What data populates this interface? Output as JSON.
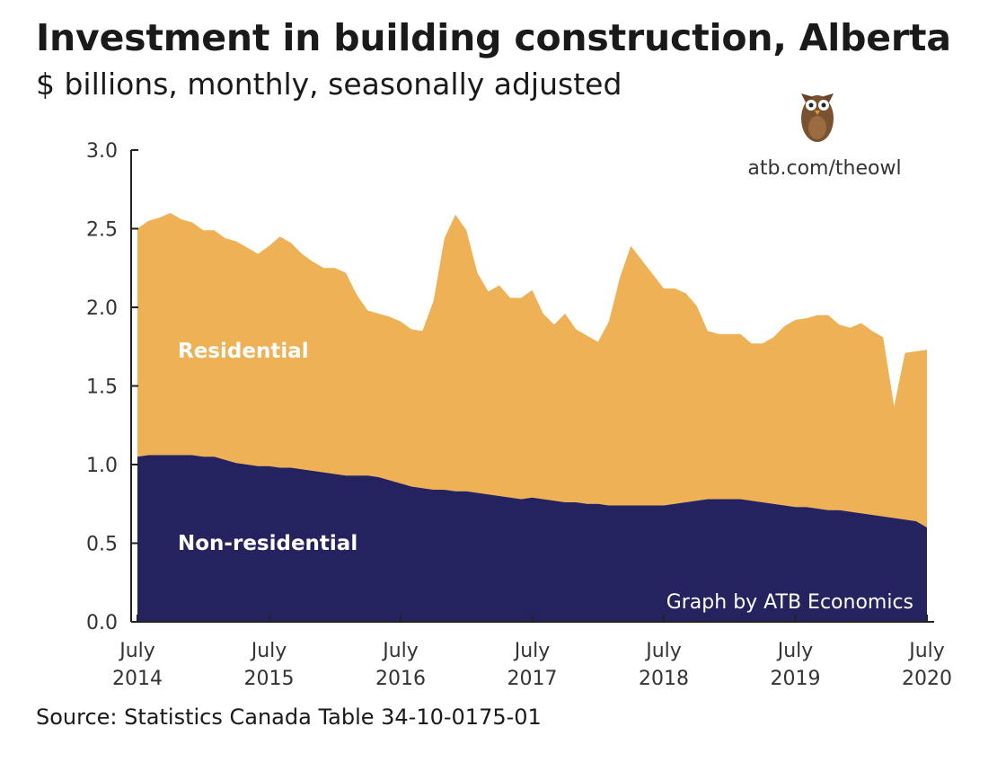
{
  "title": "Investment in building construction, Alberta",
  "subtitle": "$ billions, monthly, seasonally adjusted",
  "source": "Source: Statistics Canada Table 34-10-0175-01",
  "owl_link": "atb.com/theowl",
  "credit": "Graph by ATB Economics",
  "colors": {
    "residential": "#EEB156",
    "non_residential": "#25235F",
    "owl": "#7A5230"
  },
  "chart_data": {
    "type": "area",
    "stacked": true,
    "ylim": [
      0,
      3.0
    ],
    "yticks": [
      "0.0",
      "0.5",
      "1.0",
      "1.5",
      "2.0",
      "2.5",
      "3.0"
    ],
    "xticks": [
      {
        "month": "July",
        "year": "2014"
      },
      {
        "month": "July",
        "year": "2015"
      },
      {
        "month": "July",
        "year": "2016"
      },
      {
        "month": "July",
        "year": "2017"
      },
      {
        "month": "July",
        "year": "2018"
      },
      {
        "month": "July",
        "year": "2019"
      },
      {
        "month": "July",
        "year": "2020"
      }
    ],
    "x_start": "2014-07",
    "x_end": "2020-07",
    "series": [
      {
        "name": "Non-residential",
        "values": [
          1.05,
          1.06,
          1.06,
          1.06,
          1.06,
          1.06,
          1.05,
          1.05,
          1.03,
          1.01,
          1.0,
          0.99,
          0.99,
          0.98,
          0.98,
          0.97,
          0.96,
          0.95,
          0.94,
          0.93,
          0.93,
          0.93,
          0.92,
          0.9,
          0.88,
          0.86,
          0.85,
          0.84,
          0.84,
          0.83,
          0.83,
          0.82,
          0.81,
          0.8,
          0.79,
          0.78,
          0.79,
          0.78,
          0.77,
          0.76,
          0.76,
          0.75,
          0.75,
          0.74,
          0.74,
          0.74,
          0.74,
          0.74,
          0.74,
          0.75,
          0.76,
          0.77,
          0.78,
          0.78,
          0.78,
          0.78,
          0.77,
          0.76,
          0.75,
          0.74,
          0.73,
          0.73,
          0.72,
          0.71,
          0.71,
          0.7,
          0.69,
          0.68,
          0.67,
          0.66,
          0.65,
          0.64,
          0.6
        ]
      },
      {
        "name": "Residential",
        "values": [
          1.45,
          1.49,
          1.51,
          1.54,
          1.5,
          1.48,
          1.44,
          1.44,
          1.41,
          1.41,
          1.38,
          1.35,
          1.4,
          1.47,
          1.43,
          1.37,
          1.33,
          1.3,
          1.31,
          1.29,
          1.15,
          1.05,
          1.04,
          1.04,
          1.03,
          1.0,
          1.0,
          1.2,
          1.6,
          1.76,
          1.66,
          1.4,
          1.29,
          1.34,
          1.27,
          1.28,
          1.32,
          1.18,
          1.12,
          1.2,
          1.1,
          1.07,
          1.03,
          1.17,
          1.45,
          1.65,
          1.56,
          1.47,
          1.38,
          1.37,
          1.33,
          1.24,
          1.07,
          1.05,
          1.05,
          1.05,
          1.0,
          1.01,
          1.06,
          1.14,
          1.19,
          1.2,
          1.23,
          1.24,
          1.18,
          1.17,
          1.21,
          1.17,
          1.14,
          0.71,
          1.06,
          1.08,
          1.13
        ]
      }
    ],
    "area_labels": [
      "Residential",
      "Non-residential"
    ]
  }
}
